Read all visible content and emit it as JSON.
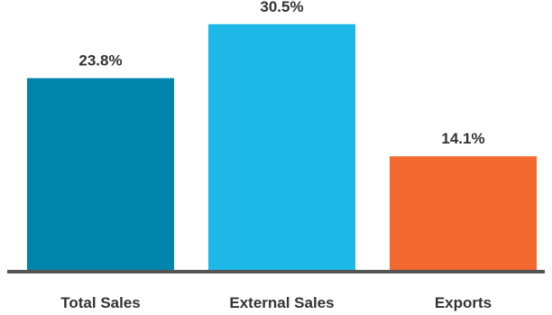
{
  "chart_data": {
    "type": "bar",
    "title": "",
    "xlabel": "",
    "ylabel": "",
    "categories": [
      "Total Sales",
      "External Sales",
      "Exports"
    ],
    "values": [
      23.8,
      30.5,
      14.1
    ],
    "data_labels": [
      "23.8%",
      "30.5%",
      "14.1%"
    ],
    "colors": [
      "#0086AD",
      "#1DB8E8",
      "#F26A30"
    ],
    "ylim": [
      0,
      33.5
    ],
    "grid": false,
    "legend": "none",
    "axis_color": "#555555"
  }
}
